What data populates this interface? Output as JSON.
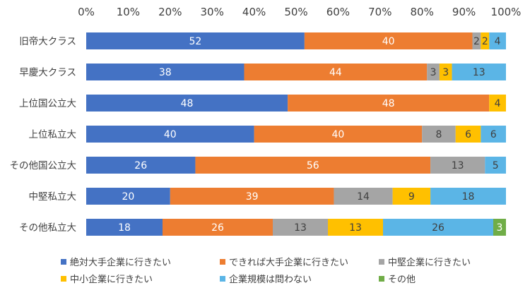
{
  "chart_data": {
    "type": "bar",
    "orientation": "horizontal",
    "stacked": true,
    "percent_stacked": true,
    "xlim": [
      0,
      100
    ],
    "x_ticks": [
      "0%",
      "10%",
      "20%",
      "30%",
      "40%",
      "50%",
      "60%",
      "70%",
      "80%",
      "90%",
      "100%"
    ],
    "x_axis_position": "top",
    "grid": false,
    "legend_position": "bottom",
    "categories": [
      "旧帝大クラス",
      "早慶大クラス",
      "上位国公立大",
      "上位私立大",
      "その他国公立大",
      "中堅私立大",
      "その他私立大"
    ],
    "series": [
      {
        "name": "絶対大手企業に行きたい",
        "color": "#4472C4",
        "values": [
          52,
          38,
          48,
          40,
          26,
          20,
          18
        ]
      },
      {
        "name": "できれば大手企業に行きたい",
        "color": "#ED7D31",
        "values": [
          40,
          44,
          48,
          40,
          56,
          39,
          26
        ]
      },
      {
        "name": "中堅企業に行きたい",
        "color": "#A5A5A5",
        "values": [
          2,
          3,
          0,
          8,
          13,
          14,
          13
        ]
      },
      {
        "name": "中小企業に行きたい",
        "color": "#FFC000",
        "values": [
          2,
          3,
          4,
          6,
          0,
          9,
          13
        ]
      },
      {
        "name": "企業規模は問わない",
        "color": "#5BB5E6",
        "values": [
          4,
          13,
          0,
          6,
          5,
          18,
          26
        ]
      },
      {
        "name": "その他",
        "color": "#70AD47",
        "values": [
          0,
          0,
          0,
          0,
          0,
          0,
          3
        ]
      }
    ],
    "label_colors": {
      "dark": "#404040",
      "light": "#ffffff"
    }
  }
}
